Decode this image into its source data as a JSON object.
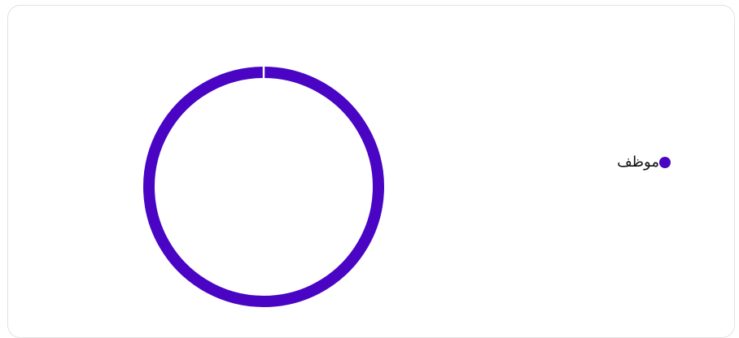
{
  "chart_data": {
    "type": "pie",
    "variant": "donut",
    "categories": [
      "موظف"
    ],
    "values": [
      100
    ],
    "colors": [
      "#4a04c4"
    ],
    "legend_position": "right"
  }
}
